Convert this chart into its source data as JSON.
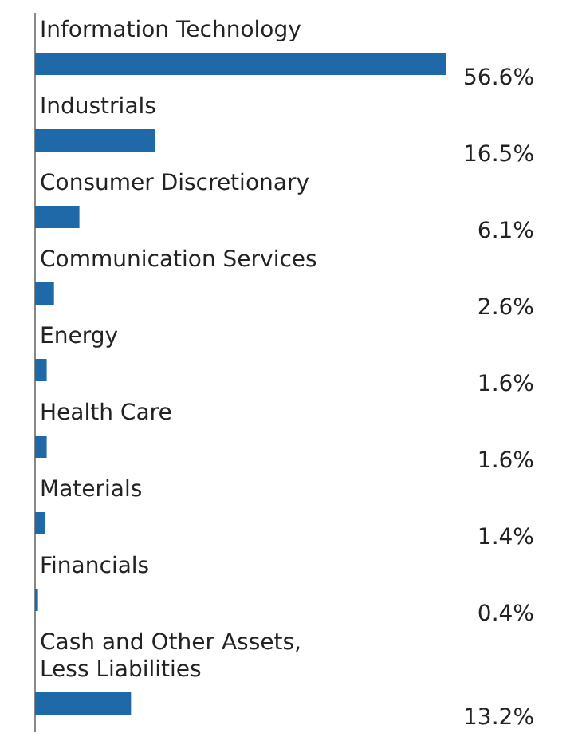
{
  "chart_data": {
    "type": "bar",
    "orientation": "horizontal",
    "data_labels": true,
    "categories": [
      "Information Technology",
      "Industrials",
      "Consumer Discretionary",
      "Communication Services",
      "Energy",
      "Health Care",
      "Materials",
      "Financials",
      "Cash and Other Assets, Less Liabilities"
    ],
    "values": [
      56.6,
      16.5,
      6.1,
      2.6,
      1.6,
      1.6,
      1.4,
      0.4,
      13.2
    ],
    "value_labels": [
      "56.6%",
      "16.5%",
      "6.1%",
      "2.6%",
      "1.6%",
      "1.6%",
      "1.4%",
      "0.4%",
      "13.2%"
    ],
    "color": "#1f69a8"
  }
}
